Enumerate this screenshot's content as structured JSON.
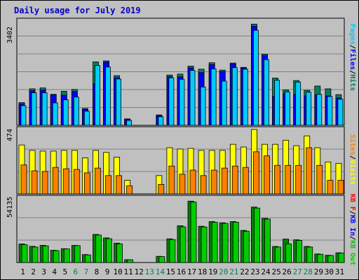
{
  "title": "Daily usage for July 2019",
  "colors": {
    "background": "#c0c0c0",
    "title": "#0000cc",
    "hits": "#00805c",
    "files": "#0000ff",
    "pages": "#00ccff",
    "visits": "#ffff00",
    "sites": "#ff8000",
    "kbin": "#008000",
    "kbout": "#00cc00",
    "weekend": "#00805c"
  },
  "chart_data": [
    {
      "type": "bar",
      "name": "hits-files-pages",
      "ymax_label": "3402",
      "ymax": 3402,
      "legend": [
        "Pages",
        "Files",
        "Hits"
      ],
      "series": [
        {
          "name": "Hits",
          "values": [
            740,
            1190,
            1220,
            1010,
            1110,
            1170,
            550,
            2070,
            2100,
            1620,
            210,
            0,
            0,
            340,
            1640,
            1670,
            1930,
            1830,
            2040,
            1800,
            2030,
            1890,
            3300,
            2320,
            1540,
            1150,
            1460,
            1140,
            1280,
            1190,
            1000
          ]
        },
        {
          "name": "Files",
          "values": [
            700,
            1130,
            1150,
            1000,
            980,
            1100,
            520,
            1350,
            2060,
            1550,
            190,
            0,
            0,
            310,
            1580,
            1580,
            1870,
            1720,
            1980,
            1750,
            2000,
            1870,
            3230,
            2270,
            950,
            1030,
            1010,
            960,
            990,
            960,
            890
          ]
        },
        {
          "name": "Pages",
          "values": [
            640,
            1060,
            1060,
            730,
            830,
            920,
            460,
            1950,
            1900,
            1510,
            160,
            0,
            0,
            280,
            1550,
            1500,
            1790,
            1250,
            1840,
            1440,
            1880,
            1830,
            3100,
            2140,
            1470,
            1090,
            1410,
            1080,
            1010,
            940,
            850
          ]
        }
      ]
    },
    {
      "type": "bar",
      "name": "visits-sites",
      "ymax_label": "474",
      "ymax": 474,
      "legend": [
        "Sites",
        "Visits"
      ],
      "series": [
        {
          "name": "Visits",
          "values": [
            360,
            320,
            315,
            315,
            320,
            320,
            265,
            320,
            305,
            270,
            100,
            0,
            0,
            135,
            340,
            330,
            335,
            320,
            320,
            320,
            365,
            345,
            474,
            365,
            365,
            395,
            355,
            427,
            340,
            235,
            225
          ]
        },
        {
          "name": "Sites",
          "values": [
            213,
            170,
            165,
            195,
            185,
            180,
            155,
            190,
            135,
            135,
            60,
            0,
            0,
            70,
            205,
            145,
            175,
            135,
            175,
            190,
            205,
            195,
            310,
            280,
            210,
            210,
            210,
            340,
            210,
            100,
            100
          ]
        }
      ]
    },
    {
      "type": "bar",
      "name": "kbin-kbout",
      "ymax_label": "54135",
      "ymax": 54135,
      "legend": [
        "KB F",
        "KB In",
        "KB Out"
      ],
      "series": [
        {
          "name": "KB In",
          "values": [
            15600,
            13600,
            14400,
            10300,
            11600,
            14400,
            6700,
            23600,
            20700,
            16300,
            2400,
            0,
            0,
            5200,
            19900,
            30900,
            51600,
            30500,
            34400,
            33400,
            34400,
            27000,
            46600,
            37100,
            13500,
            19700,
            19100,
            13500,
            7200,
            6100,
            8200
          ]
        },
        {
          "name": "KB Out",
          "values": [
            15000,
            13000,
            14000,
            10000,
            11400,
            14200,
            6400,
            23100,
            20000,
            15700,
            2300,
            0,
            0,
            5000,
            19300,
            30000,
            50800,
            29900,
            33800,
            32900,
            33900,
            26300,
            45800,
            36500,
            13000,
            15700,
            18500,
            13000,
            6900,
            5900,
            7900
          ]
        }
      ]
    }
  ],
  "x_labels": [
    "1",
    "2",
    "3",
    "4",
    "5",
    "6",
    "7",
    "8",
    "9",
    "10",
    "11",
    "12",
    "13",
    "14",
    "15",
    "16",
    "17",
    "18",
    "19",
    "20",
    "21",
    "22",
    "23",
    "24",
    "25",
    "26",
    "27",
    "28",
    "29",
    "30",
    "31"
  ],
  "weekend_days": [
    "6",
    "7",
    "13",
    "14",
    "20",
    "21",
    "27",
    "28"
  ],
  "legend_right": {
    "top": {
      "pages": "Pages",
      "sep1": "/",
      "files": "Files",
      "sep2": "/",
      "hits": "Hits"
    },
    "mid": {
      "sites": "Sites",
      "sep1": "/",
      "visits": "Visits"
    },
    "bottom": {
      "kbf": "KB F",
      "sep1": "/",
      "kbin": "KB In",
      "sep2": "/",
      "kbout": "KB Out"
    }
  }
}
